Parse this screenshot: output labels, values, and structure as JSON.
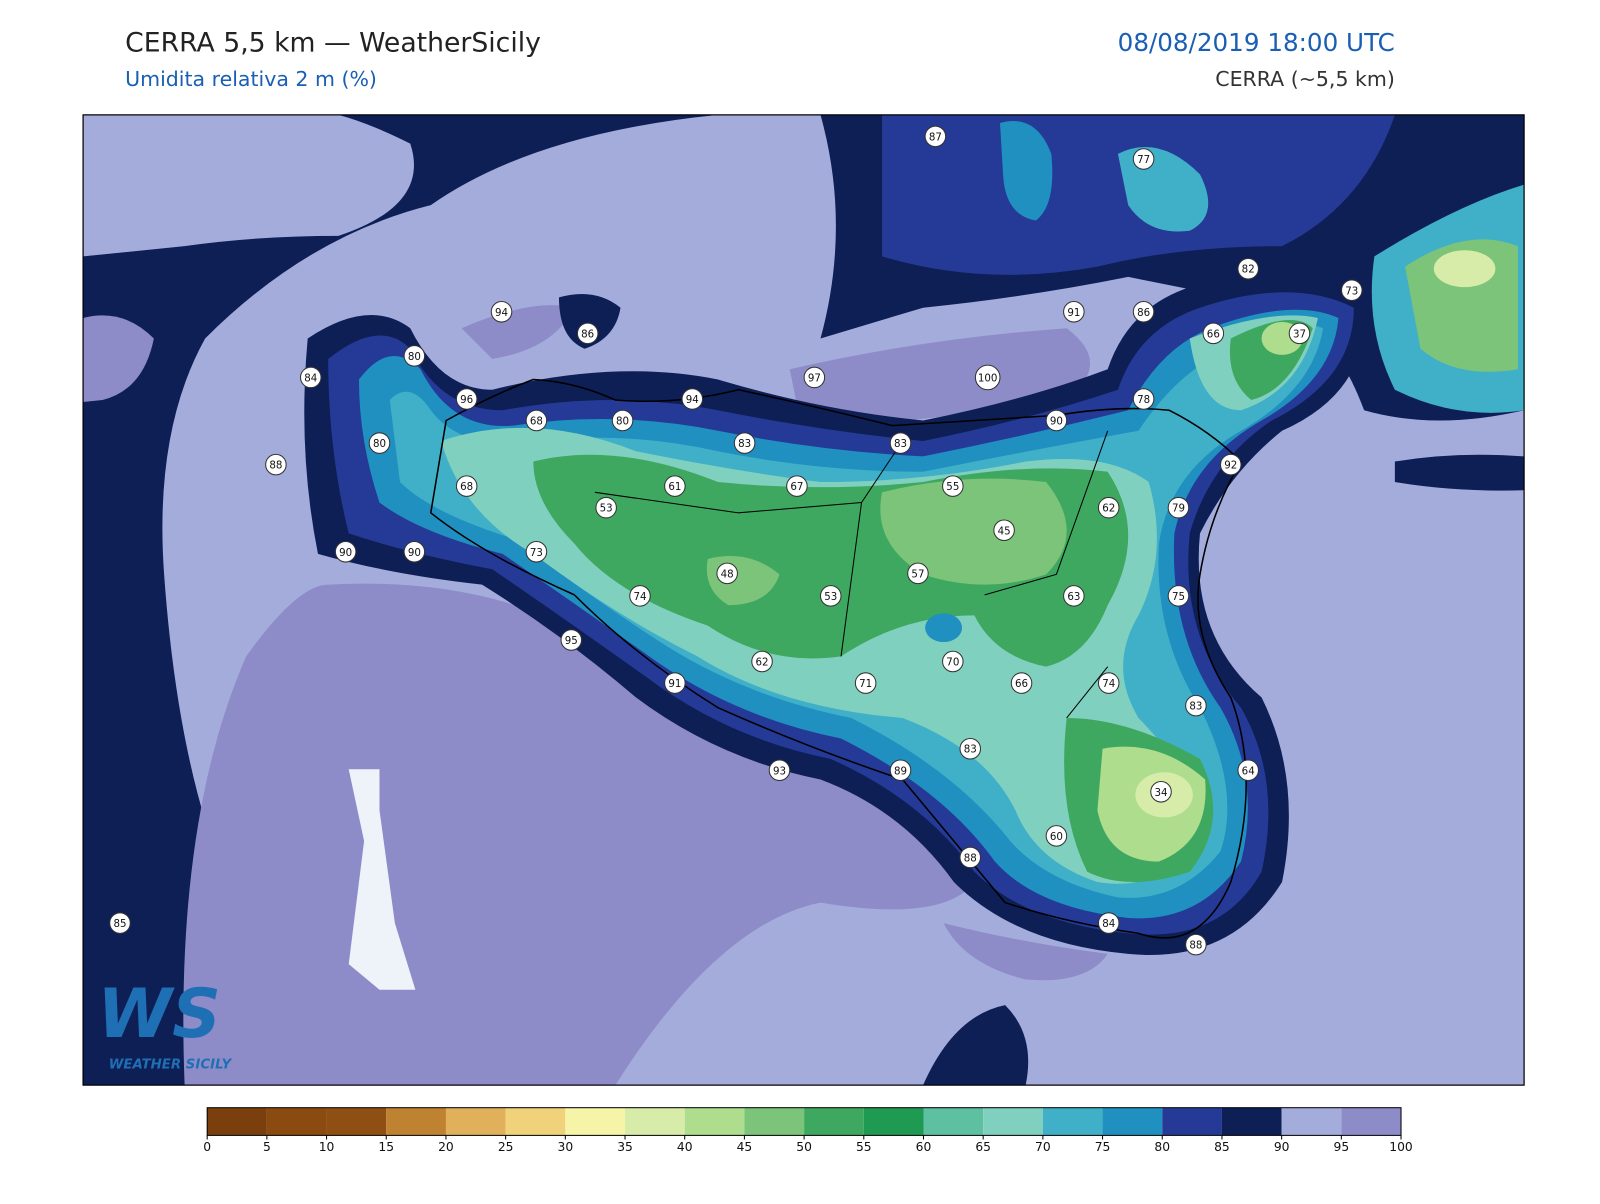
{
  "header": {
    "title": "CERRA 5,5 km — WeatherSicily",
    "subtitle": "Umidita relativa 2 m (%)",
    "datetime": "08/08/2019 18:00 UTC",
    "model": "CERRA (~5,5 km)"
  },
  "stations": [
    87,
    77,
    82,
    73,
    94,
    86,
    91,
    86,
    66,
    37,
    80,
    84,
    97,
    100,
    96,
    94,
    78,
    68,
    80,
    90,
    80,
    83,
    83,
    88,
    92,
    68,
    61,
    67,
    55,
    53,
    62,
    79,
    45,
    90,
    90,
    73,
    48,
    57,
    74,
    53,
    63,
    75,
    95,
    70,
    62,
    91,
    71,
    66,
    74,
    83,
    83,
    93,
    89,
    64,
    34,
    60,
    88,
    84,
    85,
    88
  ],
  "colorbar": {
    "ticks": [
      0,
      5,
      10,
      15,
      20,
      25,
      30,
      35,
      40,
      45,
      50,
      55,
      60,
      65,
      70,
      75,
      80,
      85,
      90,
      95,
      100
    ],
    "colors": [
      "#7a3f0c",
      "#8a4a10",
      "#8f4f13",
      "#bf8230",
      "#e0b05a",
      "#f0d27a",
      "#f6f4a6",
      "#d8ecaa",
      "#aedd8e",
      "#7cc47a",
      "#3fa860",
      "#1e9a52",
      "#5dc0a0",
      "#80d0c0",
      "#40b0c8",
      "#2090c0",
      "#253a96",
      "#0e1f56",
      "#a4acdc",
      "#8e8cc8"
    ]
  },
  "logo": {
    "mark": "WS",
    "name": "WEATHER SICILY"
  }
}
